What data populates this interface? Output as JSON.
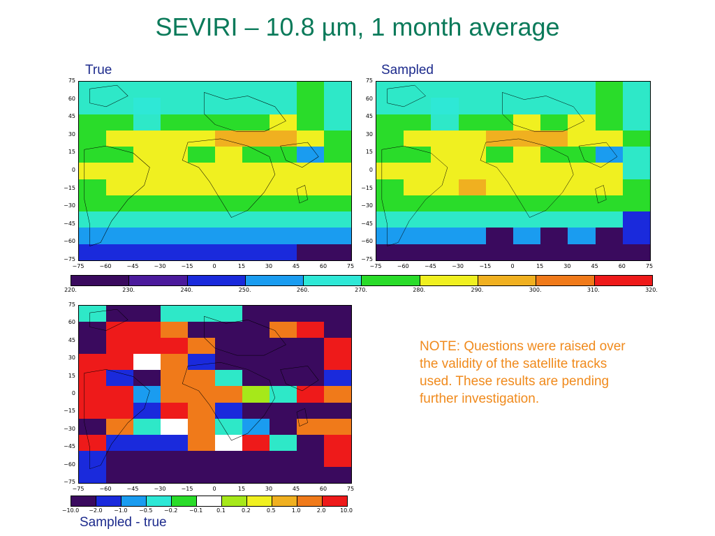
{
  "title": "SEVIRI – 10.8 µm, 1 month average",
  "panels": {
    "true_label": "True",
    "sampled_label": "Sampled",
    "diff_label": "Sampled - true"
  },
  "note": "NOTE: Questions were raised over the validity of the satellite tracks used. These results are pending further investigation.",
  "axes": {
    "y_ticks": [
      "75",
      "60",
      "45",
      "30",
      "15",
      "0",
      "−15",
      "−30",
      "−45",
      "−60",
      "−75"
    ],
    "x_ticks": [
      "−75",
      "−60",
      "−45",
      "−30",
      "−15",
      "0",
      "15",
      "30",
      "45",
      "60",
      "75"
    ]
  },
  "temp_colorbar": {
    "colors": [
      "#3a0a5e",
      "#4b1a9c",
      "#1a2adc",
      "#1a9cf0",
      "#2ee8d6",
      "#2adc2a",
      "#f0f020",
      "#f0b020",
      "#f07a1a",
      "#ee1a1a"
    ],
    "labels": [
      "220.",
      "230.",
      "240.",
      "250.",
      "260.",
      "270.",
      "280.",
      "290.",
      "300.",
      "310.",
      "320."
    ]
  },
  "diff_colorbar": {
    "colors": [
      "#3a0a5e",
      "#1a2adc",
      "#1a9cf0",
      "#2ee8d6",
      "#2adc2a",
      "#ffffff",
      "#a6e81a",
      "#f0f020",
      "#f0b020",
      "#f07a1a",
      "#ee1a1a"
    ],
    "labels": [
      "−10.0",
      "−2.0",
      "−1.0",
      "−0.5",
      "−0.2",
      "−0.1",
      "0.1",
      "0.2",
      "0.5",
      "1.0",
      "2.0",
      "10.0"
    ]
  },
  "maps": {
    "true_grid": [
      [
        "c",
        "c",
        "c",
        "c",
        "c",
        "c",
        "c",
        "c",
        "g",
        "c"
      ],
      [
        "c",
        "c",
        "t",
        "c",
        "c",
        "c",
        "c",
        "c",
        "g",
        "c"
      ],
      [
        "g",
        "g",
        "c",
        "g",
        "g",
        "g",
        "g",
        "y",
        "g",
        "c"
      ],
      [
        "g",
        "y",
        "y",
        "y",
        "y",
        "o",
        "o",
        "o",
        "y",
        "g"
      ],
      [
        "g",
        "g",
        "y",
        "y",
        "g",
        "y",
        "g",
        "g",
        "b",
        "g"
      ],
      [
        "y",
        "y",
        "y",
        "y",
        "y",
        "y",
        "y",
        "y",
        "y",
        "y"
      ],
      [
        "g",
        "y",
        "y",
        "y",
        "y",
        "y",
        "y",
        "y",
        "y",
        "y"
      ],
      [
        "g",
        "g",
        "g",
        "g",
        "g",
        "g",
        "g",
        "g",
        "g",
        "g"
      ],
      [
        "c",
        "c",
        "c",
        "c",
        "c",
        "c",
        "c",
        "c",
        "c",
        "c"
      ],
      [
        "b",
        "b",
        "b",
        "b",
        "b",
        "b",
        "b",
        "b",
        "b",
        "b"
      ],
      [
        "B",
        "B",
        "B",
        "B",
        "B",
        "B",
        "B",
        "B",
        "P",
        "P"
      ]
    ],
    "sampled_grid": [
      [
        "c",
        "c",
        "c",
        "c",
        "c",
        "c",
        "c",
        "c",
        "g",
        "c"
      ],
      [
        "c",
        "c",
        "t",
        "c",
        "c",
        "c",
        "c",
        "c",
        "g",
        "c"
      ],
      [
        "g",
        "g",
        "c",
        "g",
        "g",
        "y",
        "g",
        "y",
        "g",
        "c"
      ],
      [
        "g",
        "y",
        "y",
        "y",
        "o",
        "o",
        "o",
        "y",
        "y",
        "g"
      ],
      [
        "g",
        "g",
        "y",
        "y",
        "g",
        "y",
        "g",
        "g",
        "b",
        "c"
      ],
      [
        "y",
        "y",
        "y",
        "y",
        "y",
        "y",
        "y",
        "y",
        "y",
        "c"
      ],
      [
        "g",
        "y",
        "y",
        "o",
        "y",
        "y",
        "y",
        "y",
        "y",
        "g"
      ],
      [
        "g",
        "g",
        "g",
        "g",
        "g",
        "g",
        "g",
        "g",
        "g",
        "g"
      ],
      [
        "c",
        "c",
        "c",
        "c",
        "c",
        "c",
        "c",
        "c",
        "c",
        "B"
      ],
      [
        "b",
        "b",
        "b",
        "b",
        "P",
        "b",
        "P",
        "b",
        "P",
        "B"
      ],
      [
        "P",
        "P",
        "P",
        "P",
        "P",
        "P",
        "P",
        "P",
        "P",
        "P"
      ]
    ],
    "diff_grid": [
      [
        "w",
        "P",
        "P",
        "c",
        "c",
        "c",
        "P",
        "P",
        "P",
        "P"
      ],
      [
        "P",
        "R",
        "R",
        "O",
        "P",
        "P",
        "P",
        "O",
        "R",
        "P"
      ],
      [
        "P",
        "R",
        "R",
        "R",
        "O",
        "P",
        "P",
        "P",
        "P",
        "R"
      ],
      [
        "R",
        "R",
        "W",
        "O",
        "B",
        "P",
        "P",
        "P",
        "P",
        "R"
      ],
      [
        "R",
        "B",
        "P",
        "O",
        "O",
        "c",
        "P",
        "P",
        "P",
        "B"
      ],
      [
        "R",
        "R",
        "b",
        "O",
        "O",
        "O",
        "Y",
        "c",
        "R",
        "O"
      ],
      [
        "R",
        "R",
        "B",
        "R",
        "O",
        "B",
        "P",
        "P",
        "P",
        "P"
      ],
      [
        "P",
        "O",
        "c",
        "W",
        "O",
        "c",
        "b",
        "P",
        "O",
        "O"
      ],
      [
        "R",
        "B",
        "B",
        "B",
        "O",
        "W",
        "R",
        "c",
        "P",
        "R"
      ],
      [
        "B",
        "P",
        "P",
        "P",
        "P",
        "P",
        "P",
        "P",
        "P",
        "R"
      ],
      [
        "B",
        "P",
        "P",
        "P",
        "P",
        "P",
        "P",
        "P",
        "P",
        "P"
      ]
    ],
    "palette": {
      "P": "#3a0a5e",
      "B": "#1a2adc",
      "b": "#1a9cf0",
      "t": "#2ee8d6",
      "c": "#2ee8c8",
      "g": "#2adc2a",
      "y": "#f0f020",
      "o": "#f0b020",
      "O": "#f07a1a",
      "R": "#ee1a1a",
      "W": "#ffffff",
      "w": "#2ee8c8",
      "Y": "#a6e81a"
    }
  }
}
